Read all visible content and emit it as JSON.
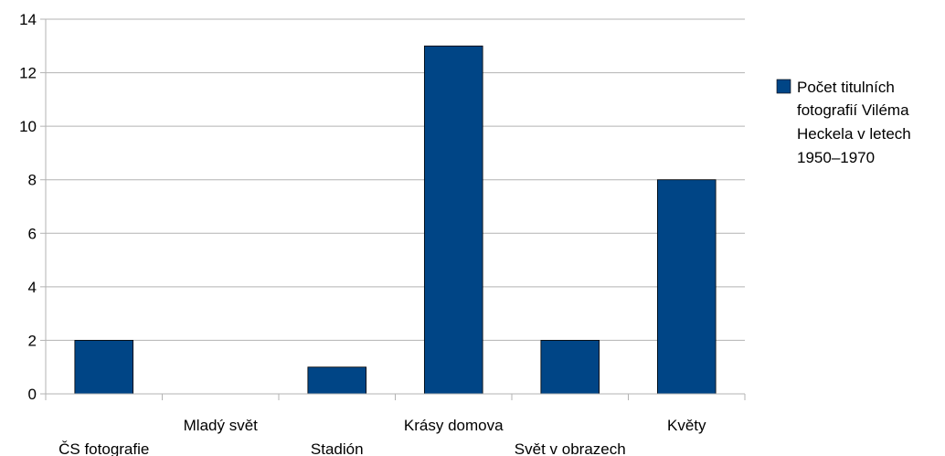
{
  "chart_data": {
    "type": "bar",
    "categories": [
      "ČS fotografie",
      "Mladý svět",
      "Stadión",
      "Krásy domova",
      "Svět v obrazech",
      "Květy"
    ],
    "series": [
      {
        "name": "Počet titulních fotografií Viléma Heckela v letech 1950–1970",
        "values": [
          2,
          0,
          1,
          13,
          2,
          8
        ],
        "color": "#004586"
      }
    ],
    "legend_lines": [
      "Počet titulních",
      "fotografií Viléma",
      "Heckela v letech",
      "1950–1970"
    ],
    "yticks": [
      "0",
      "2",
      "4",
      "6",
      "8",
      "10",
      "12",
      "14"
    ],
    "ylim": [
      0,
      14
    ],
    "grid": true,
    "legend_position": "right"
  }
}
